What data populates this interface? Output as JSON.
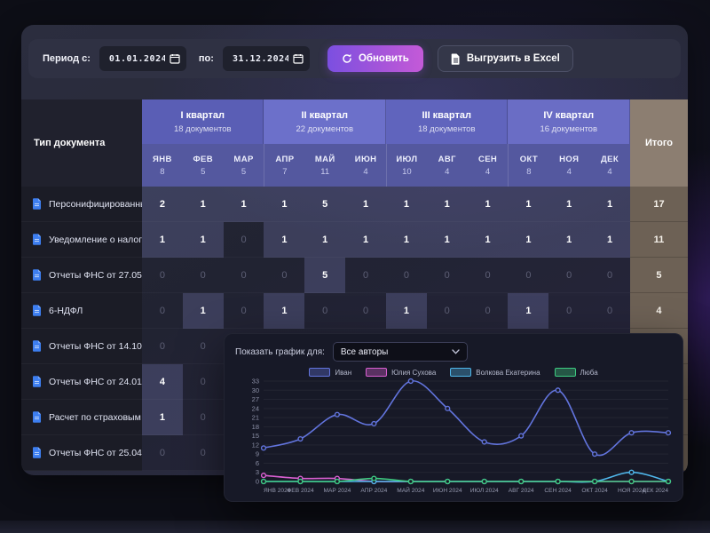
{
  "toolbar": {
    "period_label": "Период с:",
    "date_from": "01.01.2024",
    "to_label": "по:",
    "date_to": "31.12.2024",
    "refresh_label": "Обновить",
    "export_label": "Выгрузить в Excel"
  },
  "table": {
    "doc_type_header": "Тип документа",
    "total_header": "Итого",
    "quarters": [
      {
        "label": "I квартал",
        "sub": "18 документов",
        "color": "#5a5eb5"
      },
      {
        "label": "II квартал",
        "sub": "22 документов",
        "color": "#6c70ca"
      },
      {
        "label": "III квартал",
        "sub": "18 документов",
        "color": "#6064bd"
      },
      {
        "label": "IV квартал",
        "sub": "16 документов",
        "color": "#6a6dc5"
      }
    ],
    "months": [
      {
        "label": "ЯНВ",
        "count": 8
      },
      {
        "label": "ФЕВ",
        "count": 5
      },
      {
        "label": "МАР",
        "count": 5
      },
      {
        "label": "АПР",
        "count": 7
      },
      {
        "label": "МАЙ",
        "count": 11
      },
      {
        "label": "ИЮН",
        "count": 4
      },
      {
        "label": "ИЮЛ",
        "count": 10
      },
      {
        "label": "АВГ",
        "count": 4
      },
      {
        "label": "СЕН",
        "count": 4
      },
      {
        "label": "ОКТ",
        "count": 8
      },
      {
        "label": "НОЯ",
        "count": 4
      },
      {
        "label": "ДЕК",
        "count": 4
      }
    ],
    "rows": [
      {
        "label": "Персонифицированны...",
        "values": [
          2,
          1,
          1,
          1,
          5,
          1,
          1,
          1,
          1,
          1,
          1,
          1
        ],
        "total": 17
      },
      {
        "label": "Уведомление о налога...",
        "values": [
          1,
          1,
          0,
          1,
          1,
          1,
          1,
          1,
          1,
          1,
          1,
          1
        ],
        "total": 11
      },
      {
        "label": "Отчеты ФНС от 27.05.2...",
        "values": [
          0,
          0,
          0,
          0,
          5,
          0,
          0,
          0,
          0,
          0,
          0,
          0
        ],
        "total": 5
      },
      {
        "label": "6-НДФЛ",
        "values": [
          0,
          1,
          0,
          1,
          0,
          0,
          1,
          0,
          0,
          1,
          0,
          0
        ],
        "total": 4
      },
      {
        "label": "Отчеты ФНС от 14.10.2...",
        "values": [
          0,
          0,
          null,
          null,
          null,
          null,
          null,
          null,
          null,
          null,
          null,
          null
        ],
        "total": null
      },
      {
        "label": "Отчеты ФНС от 24.01.2...",
        "values": [
          4,
          0,
          null,
          null,
          null,
          null,
          null,
          null,
          null,
          null,
          null,
          null
        ],
        "total": null
      },
      {
        "label": "Расчет по страховым ...",
        "values": [
          1,
          0,
          null,
          null,
          null,
          null,
          null,
          null,
          null,
          null,
          null,
          null
        ],
        "total": null
      },
      {
        "label": "Отчеты ФНС от 25.04...",
        "values": [
          0,
          0,
          null,
          null,
          null,
          null,
          null,
          null,
          null,
          null,
          null,
          null
        ],
        "total": null
      }
    ]
  },
  "chart_panel": {
    "filter_label": "Показать график для:",
    "filter_value": "Все авторы"
  },
  "chart_data": {
    "type": "line",
    "title": "",
    "x": [
      "ЯНВ 2024",
      "ФЕВ 2024",
      "МАР 2024",
      "АПР 2024",
      "МАЙ 2024",
      "ИЮН 2024",
      "ИЮЛ 2024",
      "АВГ 2024",
      "СЕН 2024",
      "ОКТ 2024",
      "НОЯ 2024",
      "ДЕК 2024"
    ],
    "ylim": [
      0,
      33
    ],
    "ytick_step": 3,
    "grid": true,
    "legend_position": "top",
    "series": [
      {
        "name": "Иван",
        "color": "#6274dd",
        "values": [
          11,
          14,
          22,
          19,
          33,
          24,
          13,
          15,
          30,
          9,
          16,
          16
        ]
      },
      {
        "name": "Юлия Сухова",
        "color": "#d85fd0",
        "values": [
          2,
          1,
          1,
          0,
          0,
          0,
          0,
          0,
          0,
          0,
          0,
          0
        ]
      },
      {
        "name": "Волкова Екатерина",
        "color": "#4fb6ea",
        "values": [
          0,
          0,
          0,
          0,
          0,
          0,
          0,
          0,
          0,
          0,
          3,
          0
        ]
      },
      {
        "name": "Люба",
        "color": "#3ecb81",
        "values": [
          0,
          0,
          0,
          1,
          0,
          0,
          0,
          0,
          0,
          0,
          0,
          0
        ]
      }
    ]
  },
  "colors": {
    "accent_gradient_start": "#7b4fe0",
    "accent_gradient_end": "#c45ad8",
    "total_column": "#6d6155",
    "total_header": "#8c7e71",
    "month_header": "#54589f",
    "card_background": "#171927"
  }
}
